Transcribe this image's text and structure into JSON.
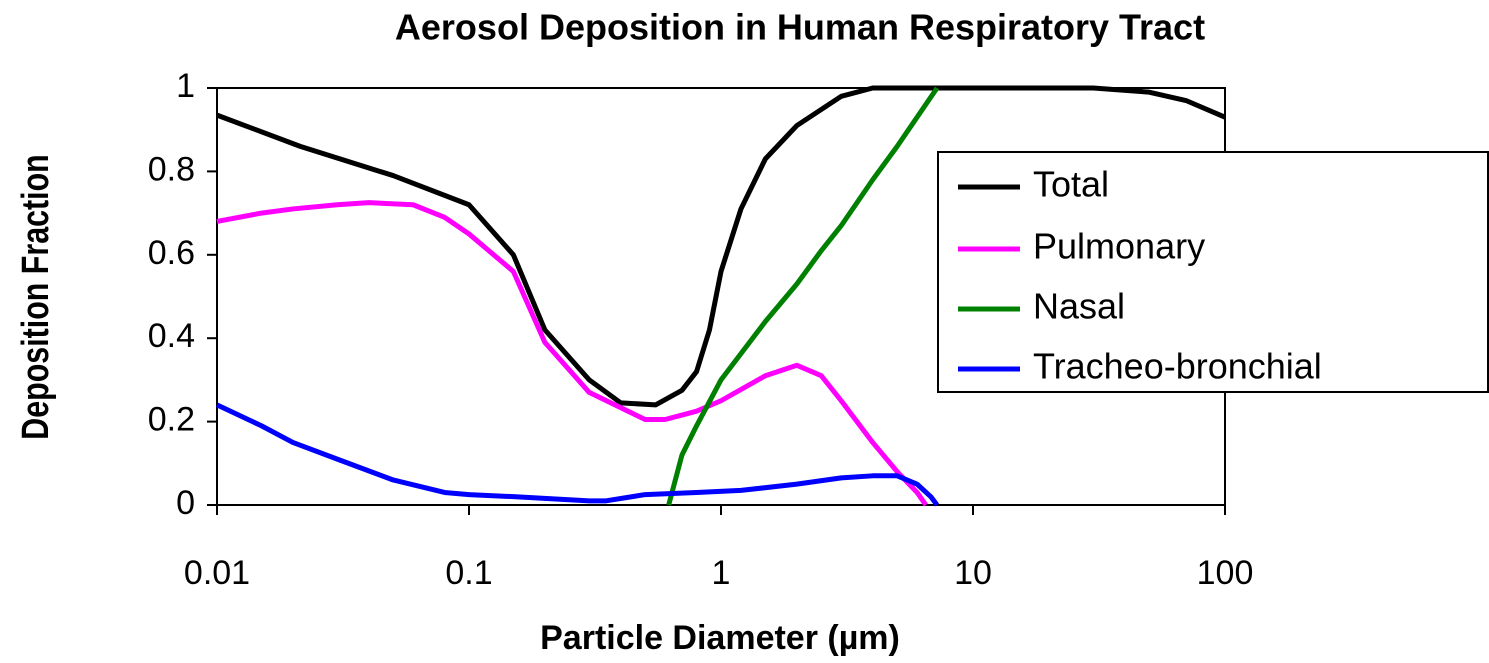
{
  "chart_data": {
    "type": "line",
    "title": "Aerosol Deposition in Human Respiratory Tract",
    "xlabel": "Particle Diameter (µm)",
    "ylabel": "Deposition Fraction",
    "xscale": "log",
    "xlim": [
      0.01,
      100
    ],
    "xticks": [
      0.01,
      0.1,
      1,
      10,
      100
    ],
    "ylim": [
      0,
      1
    ],
    "yticks": [
      0,
      0.2,
      0.4,
      0.6,
      0.8,
      1
    ],
    "grid": false,
    "legend": "right",
    "series": [
      {
        "name": "Total",
        "color": "#000000",
        "x": [
          0.01,
          0.0214,
          0.05,
          0.1,
          0.15,
          0.2,
          0.3,
          0.4,
          0.55,
          0.7,
          0.8,
          0.9,
          1.0,
          1.2,
          1.5,
          2,
          3,
          4,
          30,
          50,
          70,
          100
        ],
        "values": [
          0.935,
          0.86,
          0.79,
          0.72,
          0.6,
          0.42,
          0.3,
          0.245,
          0.24,
          0.275,
          0.32,
          0.42,
          0.56,
          0.71,
          0.83,
          0.91,
          0.98,
          1.0,
          1.0,
          0.99,
          0.97,
          0.93
        ]
      },
      {
        "name": "Pulmonary",
        "color": "#ff00ff",
        "x": [
          0.01,
          0.015,
          0.02,
          0.03,
          0.04,
          0.06,
          0.08,
          0.1,
          0.15,
          0.2,
          0.3,
          0.5,
          0.6,
          0.8,
          1.0,
          1.5,
          2,
          2.5,
          3,
          4,
          5,
          6,
          6.5
        ],
        "values": [
          0.68,
          0.7,
          0.71,
          0.72,
          0.725,
          0.72,
          0.69,
          0.65,
          0.56,
          0.39,
          0.27,
          0.205,
          0.205,
          0.225,
          0.25,
          0.31,
          0.335,
          0.31,
          0.25,
          0.15,
          0.08,
          0.03,
          0.0
        ]
      },
      {
        "name": "Nasal",
        "color": "#008000",
        "x": [
          0.62,
          0.7,
          0.8,
          1.0,
          1.5,
          2,
          2.5,
          3,
          4,
          5,
          7.2
        ],
        "values": [
          0.0,
          0.12,
          0.19,
          0.3,
          0.44,
          0.53,
          0.61,
          0.67,
          0.78,
          0.86,
          1.0
        ]
      },
      {
        "name": "Tracheo-bronchial",
        "color": "#0000ff",
        "x": [
          0.01,
          0.015,
          0.02,
          0.03,
          0.05,
          0.08,
          0.1,
          0.15,
          0.3,
          0.35,
          0.5,
          0.8,
          1.2,
          2,
          3,
          4,
          5,
          6,
          6.8,
          7.2
        ],
        "values": [
          0.24,
          0.19,
          0.15,
          0.11,
          0.06,
          0.03,
          0.025,
          0.02,
          0.01,
          0.01,
          0.025,
          0.03,
          0.035,
          0.05,
          0.065,
          0.07,
          0.07,
          0.05,
          0.02,
          0.0
        ]
      }
    ]
  }
}
